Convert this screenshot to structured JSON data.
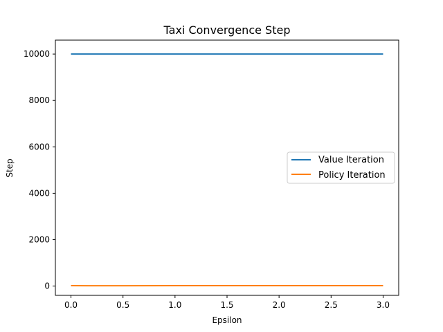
{
  "chart_data": {
    "type": "line",
    "title": "Taxi Convergence Step",
    "xlabel": "Epsilon",
    "ylabel": "Step",
    "xlim": [
      -0.15,
      3.15
    ],
    "ylim": [
      -400,
      10600
    ],
    "xticks": [
      0.0,
      0.5,
      1.0,
      1.5,
      2.0,
      2.5,
      3.0
    ],
    "xtick_labels": [
      "0.0",
      "0.5",
      "1.0",
      "1.5",
      "2.0",
      "2.5",
      "3.0"
    ],
    "yticks": [
      0,
      2000,
      4000,
      6000,
      8000,
      10000
    ],
    "ytick_labels": [
      "0",
      "2000",
      "4000",
      "6000",
      "8000",
      "10000"
    ],
    "grid": false,
    "legend_position": "center-right",
    "series": [
      {
        "name": "Value Iteration",
        "color": "#1f77b4",
        "x": [
          0.0,
          0.5,
          1.0,
          1.5,
          2.0,
          2.5,
          3.0
        ],
        "y": [
          10000,
          10000,
          10000,
          10000,
          10000,
          10000,
          10000
        ]
      },
      {
        "name": "Policy Iteration",
        "color": "#ff7f0e",
        "x": [
          0.0,
          0.5,
          1.0,
          1.5,
          2.0,
          2.5,
          3.0
        ],
        "y": [
          16,
          14,
          17,
          18,
          18,
          19,
          19
        ]
      }
    ]
  }
}
